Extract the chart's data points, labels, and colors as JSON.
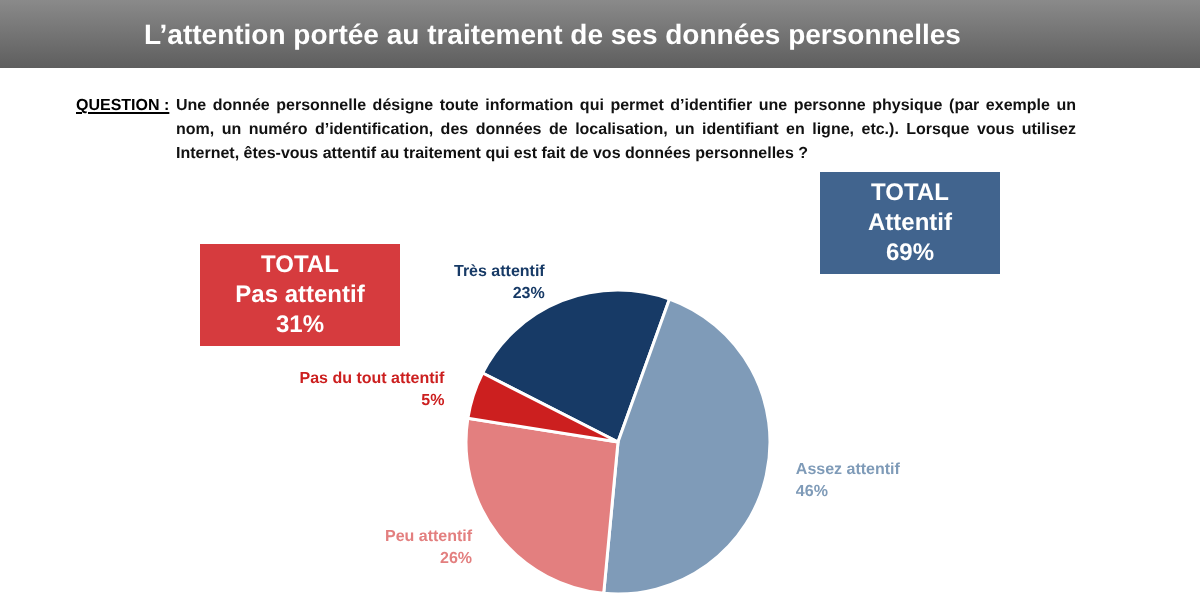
{
  "chart_data": {
    "type": "pie",
    "title": "L’attention portée au traitement de ses données personnelles",
    "subtitle": "Une donnée personnelle désigne toute information qui permet d’identifier une personne physique (par exemple un nom, un numéro d’identification, des données de localisation, un identifiant en ligne, etc.). Lorsque vous utilisez Internet, êtes-vous attentif au traitement qui est fait de vos données personnelles ?",
    "categories": [
      "Très attentif",
      "Assez attentif",
      "Peu attentif",
      "Pas du tout attentif"
    ],
    "values": [
      23,
      46,
      26,
      5
    ],
    "value_labels": [
      "23%",
      "46%",
      "26%",
      "5%"
    ],
    "colors": [
      "#173a66",
      "#7f9bb8",
      "#e37f7f",
      "#cc1f1f"
    ],
    "annotations": [
      "QUESTION :",
      "TOTAL\nPas attentif\n31%",
      "TOTAL\nAttentif\n69%"
    ]
  }
}
